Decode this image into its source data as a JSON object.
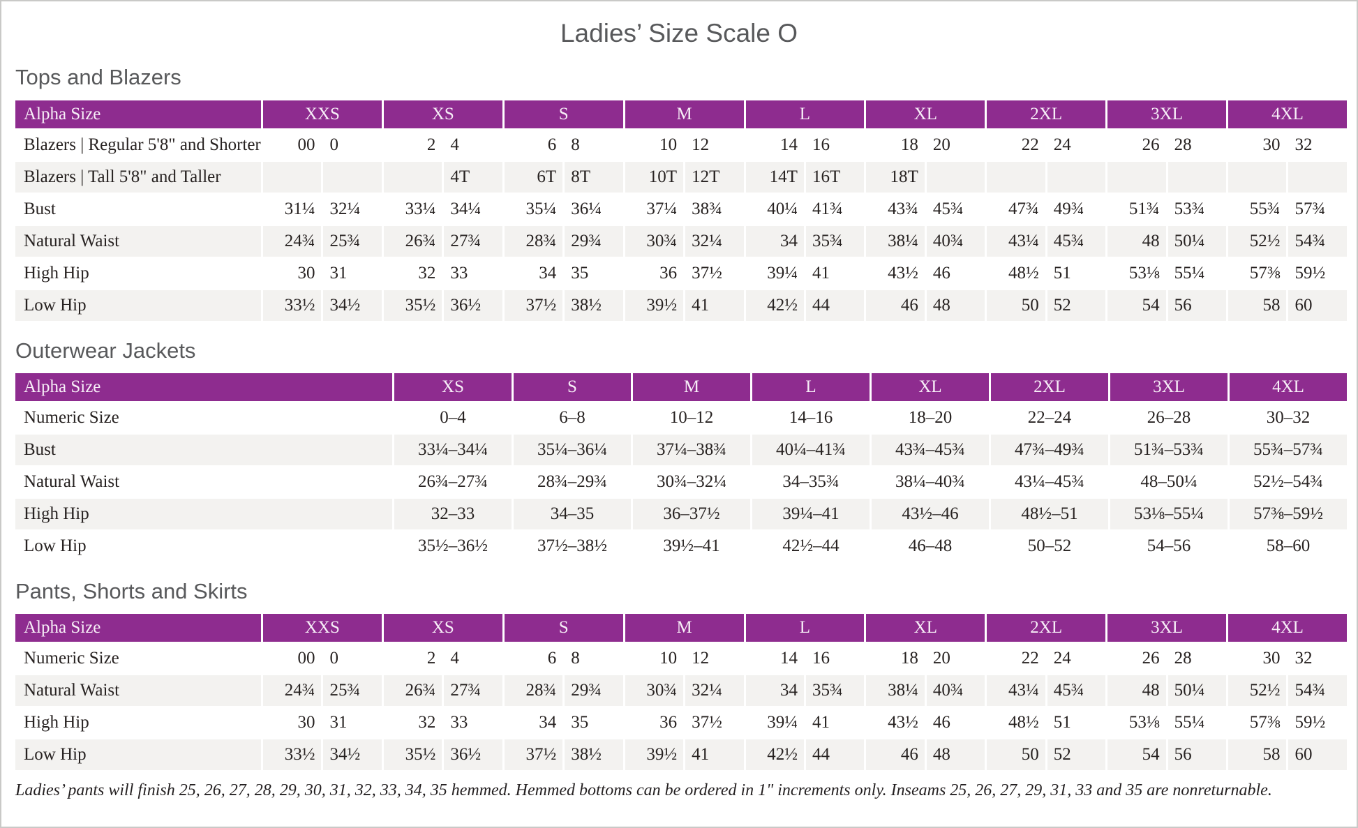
{
  "page": {
    "title": "Ladies’ Size Scale O",
    "footnote": "Ladies’ pants will finish 25, 26, 27, 28, 29, 30, 31, 32, 33, 34, 35 hemmed. Hemmed bottoms can be ordered in 1\" increments only. Inseams 25, 26, 27, 29, 31, 33 and 35 are nonreturnable."
  },
  "colors": {
    "header_purple": "#8E2C8F",
    "row_alt_gray": "#F3F2F0",
    "heading_gray": "#58595B"
  },
  "tables": [
    {
      "id": "tops-and-blazers",
      "heading": "Tops and Blazers",
      "type": "paired",
      "label_header": "Alpha Size",
      "size_groups": [
        "XXS",
        "XS",
        "S",
        "M",
        "L",
        "XL",
        "2XL",
        "3XL",
        "4XL"
      ],
      "rows": [
        {
          "label": "Blazers | Regular 5'8\" and Shorter",
          "cells": [
            [
              "00",
              "0"
            ],
            [
              "2",
              "4"
            ],
            [
              "6",
              "8"
            ],
            [
              "10",
              "12"
            ],
            [
              "14",
              "16"
            ],
            [
              "18",
              "20"
            ],
            [
              "22",
              "24"
            ],
            [
              "26",
              "28"
            ],
            [
              "30",
              "32"
            ]
          ]
        },
        {
          "label": "Blazers | Tall 5'8\" and Taller",
          "cells": [
            [
              "",
              ""
            ],
            [
              "",
              "4T"
            ],
            [
              "6T",
              "8T"
            ],
            [
              "10T",
              "12T"
            ],
            [
              "14T",
              "16T"
            ],
            [
              "18T",
              ""
            ],
            [
              "",
              ""
            ],
            [
              "",
              ""
            ],
            [
              "",
              ""
            ]
          ]
        },
        {
          "label": "Bust",
          "cells": [
            [
              "31¼",
              "32¼"
            ],
            [
              "33¼",
              "34¼"
            ],
            [
              "35¼",
              "36¼"
            ],
            [
              "37¼",
              "38¾"
            ],
            [
              "40¼",
              "41¾"
            ],
            [
              "43¾",
              "45¾"
            ],
            [
              "47¾",
              "49¾"
            ],
            [
              "51¾",
              "53¾"
            ],
            [
              "55¾",
              "57¾"
            ]
          ]
        },
        {
          "label": "Natural Waist",
          "cells": [
            [
              "24¾",
              "25¾"
            ],
            [
              "26¾",
              "27¾"
            ],
            [
              "28¾",
              "29¾"
            ],
            [
              "30¾",
              "32¼"
            ],
            [
              "34",
              "35¾"
            ],
            [
              "38¼",
              "40¾"
            ],
            [
              "43¼",
              "45¾"
            ],
            [
              "48",
              "50¼"
            ],
            [
              "52½",
              "54¾"
            ]
          ]
        },
        {
          "label": "High Hip",
          "cells": [
            [
              "30",
              "31"
            ],
            [
              "32",
              "33"
            ],
            [
              "34",
              "35"
            ],
            [
              "36",
              "37½"
            ],
            [
              "39¼",
              "41"
            ],
            [
              "43½",
              "46"
            ],
            [
              "48½",
              "51"
            ],
            [
              "53⅛",
              "55¼"
            ],
            [
              "57⅜",
              "59½"
            ]
          ]
        },
        {
          "label": "Low Hip",
          "cells": [
            [
              "33½",
              "34½"
            ],
            [
              "35½",
              "36½"
            ],
            [
              "37½",
              "38½"
            ],
            [
              "39½",
              "41"
            ],
            [
              "42½",
              "44"
            ],
            [
              "46",
              "48"
            ],
            [
              "50",
              "52"
            ],
            [
              "54",
              "56"
            ],
            [
              "58",
              "60"
            ]
          ]
        }
      ]
    },
    {
      "id": "outerwear-jackets",
      "heading": "Outerwear Jackets",
      "type": "single",
      "label_header": "Alpha Size",
      "size_groups": [
        "XS",
        "S",
        "M",
        "L",
        "XL",
        "2XL",
        "3XL",
        "4XL"
      ],
      "rows": [
        {
          "label": "Numeric Size",
          "cells": [
            "0–4",
            "6–8",
            "10–12",
            "14–16",
            "18–20",
            "22–24",
            "26–28",
            "30–32"
          ]
        },
        {
          "label": "Bust",
          "cells": [
            "33¼–34¼",
            "35¼–36¼",
            "37¼–38¾",
            "40¼–41¾",
            "43¾–45¾",
            "47¾–49¾",
            "51¾–53¾",
            "55¾–57¾"
          ]
        },
        {
          "label": "Natural Waist",
          "cells": [
            "26¾–27¾",
            "28¾–29¾",
            "30¾–32¼",
            "34–35¾",
            "38¼–40¾",
            "43¼–45¾",
            "48–50¼",
            "52½–54¾"
          ]
        },
        {
          "label": "High Hip",
          "cells": [
            "32–33",
            "34–35",
            "36–37½",
            "39¼–41",
            "43½–46",
            "48½–51",
            "53⅛–55¼",
            "57⅜–59½"
          ]
        },
        {
          "label": "Low Hip",
          "cells": [
            "35½–36½",
            "37½–38½",
            "39½–41",
            "42½–44",
            "46–48",
            "50–52",
            "54–56",
            "58–60"
          ]
        }
      ]
    },
    {
      "id": "pants-shorts-and-skirts",
      "heading": "Pants, Shorts and Skirts",
      "type": "paired",
      "label_header": "Alpha Size",
      "size_groups": [
        "XXS",
        "XS",
        "S",
        "M",
        "L",
        "XL",
        "2XL",
        "3XL",
        "4XL"
      ],
      "rows": [
        {
          "label": "Numeric Size",
          "cells": [
            [
              "00",
              "0"
            ],
            [
              "2",
              "4"
            ],
            [
              "6",
              "8"
            ],
            [
              "10",
              "12"
            ],
            [
              "14",
              "16"
            ],
            [
              "18",
              "20"
            ],
            [
              "22",
              "24"
            ],
            [
              "26",
              "28"
            ],
            [
              "30",
              "32"
            ]
          ]
        },
        {
          "label": "Natural Waist",
          "cells": [
            [
              "24¾",
              "25¾"
            ],
            [
              "26¾",
              "27¾"
            ],
            [
              "28¾",
              "29¾"
            ],
            [
              "30¾",
              "32¼"
            ],
            [
              "34",
              "35¾"
            ],
            [
              "38¼",
              "40¾"
            ],
            [
              "43¼",
              "45¾"
            ],
            [
              "48",
              "50¼"
            ],
            [
              "52½",
              "54¾"
            ]
          ]
        },
        {
          "label": "High Hip",
          "cells": [
            [
              "30",
              "31"
            ],
            [
              "32",
              "33"
            ],
            [
              "34",
              "35"
            ],
            [
              "36",
              "37½"
            ],
            [
              "39¼",
              "41"
            ],
            [
              "43½",
              "46"
            ],
            [
              "48½",
              "51"
            ],
            [
              "53⅛",
              "55¼"
            ],
            [
              "57⅜",
              "59½"
            ]
          ]
        },
        {
          "label": "Low Hip",
          "cells": [
            [
              "33½",
              "34½"
            ],
            [
              "35½",
              "36½"
            ],
            [
              "37½",
              "38½"
            ],
            [
              "39½",
              "41"
            ],
            [
              "42½",
              "44"
            ],
            [
              "46",
              "48"
            ],
            [
              "50",
              "52"
            ],
            [
              "54",
              "56"
            ],
            [
              "58",
              "60"
            ]
          ]
        }
      ]
    }
  ]
}
